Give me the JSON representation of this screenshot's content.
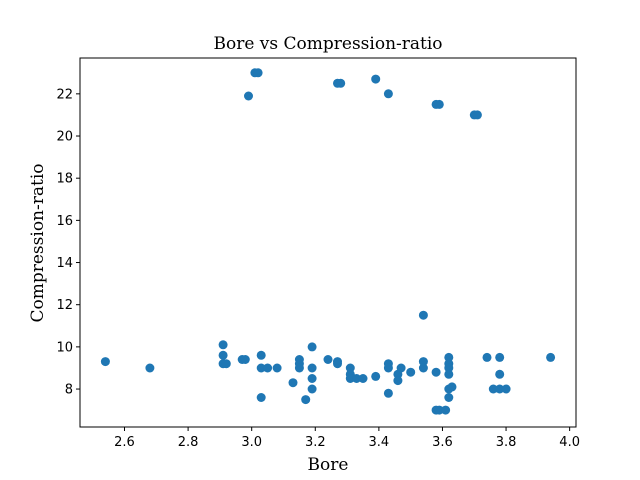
{
  "chart_data": {
    "type": "scatter",
    "title": "Bore vs Compression-ratio",
    "xlabel": "Bore",
    "ylabel": "Compression-ratio",
    "xlim": [
      2.46,
      4.02
    ],
    "ylim": [
      6.2,
      23.7
    ],
    "xticks": [
      2.6,
      2.8,
      3.0,
      3.2,
      3.4,
      3.6,
      3.8,
      4.0
    ],
    "yticks": [
      8,
      10,
      12,
      14,
      16,
      18,
      20,
      22
    ],
    "xtick_labels": [
      "2.6",
      "2.8",
      "3.0",
      "3.2",
      "3.4",
      "3.6",
      "3.8",
      "4.0"
    ],
    "ytick_labels": [
      "8",
      "10",
      "12",
      "14",
      "16",
      "18",
      "20",
      "22"
    ],
    "grid": false,
    "color": "#1f77b4",
    "points": [
      [
        3.01,
        23.0
      ],
      [
        3.02,
        23.0
      ],
      [
        3.27,
        22.5
      ],
      [
        3.28,
        22.5
      ],
      [
        3.39,
        22.7
      ],
      [
        3.43,
        22.0
      ],
      [
        2.99,
        21.9
      ],
      [
        3.58,
        21.5
      ],
      [
        3.59,
        21.5
      ],
      [
        3.7,
        21.0
      ],
      [
        3.71,
        21.0
      ],
      [
        3.54,
        11.5
      ],
      [
        2.54,
        9.3
      ],
      [
        2.68,
        9.0
      ],
      [
        2.91,
        10.1
      ],
      [
        2.91,
        9.6
      ],
      [
        2.91,
        9.2
      ],
      [
        2.92,
        9.2
      ],
      [
        2.97,
        9.4
      ],
      [
        2.98,
        9.4
      ],
      [
        3.03,
        9.6
      ],
      [
        3.03,
        9.0
      ],
      [
        3.05,
        9.0
      ],
      [
        3.08,
        9.0
      ],
      [
        3.03,
        7.6
      ],
      [
        3.13,
        8.3
      ],
      [
        3.15,
        9.4
      ],
      [
        3.15,
        9.2
      ],
      [
        3.15,
        9.0
      ],
      [
        3.17,
        7.5
      ],
      [
        3.19,
        10.0
      ],
      [
        3.19,
        9.0
      ],
      [
        3.19,
        8.5
      ],
      [
        3.19,
        8.0
      ],
      [
        3.24,
        9.4
      ],
      [
        3.27,
        9.3
      ],
      [
        3.27,
        9.2
      ],
      [
        3.31,
        9.0
      ],
      [
        3.31,
        8.7
      ],
      [
        3.31,
        8.5
      ],
      [
        3.33,
        8.5
      ],
      [
        3.35,
        8.5
      ],
      [
        3.39,
        8.6
      ],
      [
        3.43,
        9.2
      ],
      [
        3.43,
        9.0
      ],
      [
        3.43,
        7.8
      ],
      [
        3.46,
        8.7
      ],
      [
        3.46,
        8.4
      ],
      [
        3.47,
        9.0
      ],
      [
        3.5,
        8.8
      ],
      [
        3.54,
        9.3
      ],
      [
        3.54,
        9.0
      ],
      [
        3.58,
        8.8
      ],
      [
        3.58,
        7.0
      ],
      [
        3.59,
        7.0
      ],
      [
        3.61,
        7.0
      ],
      [
        3.62,
        9.5
      ],
      [
        3.62,
        9.2
      ],
      [
        3.62,
        9.0
      ],
      [
        3.62,
        8.7
      ],
      [
        3.62,
        8.0
      ],
      [
        3.62,
        7.6
      ],
      [
        3.63,
        8.1
      ],
      [
        3.74,
        9.5
      ],
      [
        3.76,
        8.0
      ],
      [
        3.78,
        9.5
      ],
      [
        3.78,
        8.7
      ],
      [
        3.78,
        8.0
      ],
      [
        3.8,
        8.0
      ],
      [
        3.94,
        9.5
      ]
    ]
  }
}
